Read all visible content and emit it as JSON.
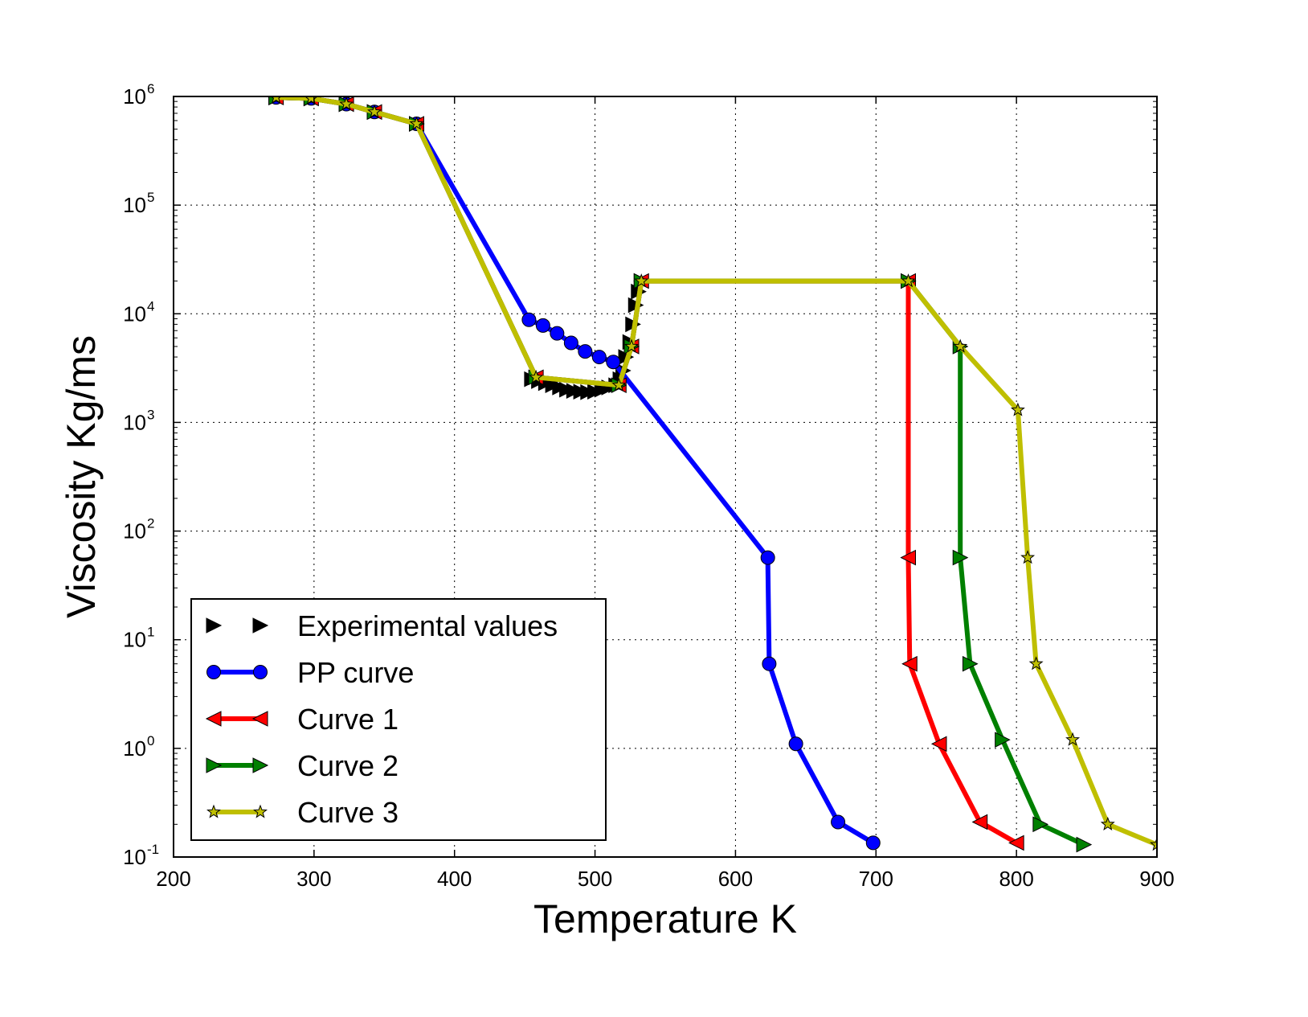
{
  "chart_data": {
    "type": "line",
    "title": "",
    "xlabel": "Temperature K",
    "ylabel": "Viscosity Kg/ms",
    "yscale": "log",
    "xlim": [
      200,
      900
    ],
    "ylim": [
      0.1,
      1000000
    ],
    "grid": true,
    "legend_position": "bottom-left",
    "x_ticks": [
      {
        "value": 200,
        "label": "200"
      },
      {
        "value": 300,
        "label": "300"
      },
      {
        "value": 400,
        "label": "400"
      },
      {
        "value": 500,
        "label": "500"
      },
      {
        "value": 600,
        "label": "600"
      },
      {
        "value": 700,
        "label": "700"
      },
      {
        "value": 800,
        "label": "800"
      },
      {
        "value": 900,
        "label": "900"
      }
    ],
    "y_ticks": [
      {
        "value": 0.1,
        "base": "10",
        "exp": "-1"
      },
      {
        "value": 1,
        "base": "10",
        "exp": "0"
      },
      {
        "value": 10,
        "base": "10",
        "exp": "1"
      },
      {
        "value": 100,
        "base": "10",
        "exp": "2"
      },
      {
        "value": 1000,
        "base": "10",
        "exp": "3"
      },
      {
        "value": 10000,
        "base": "10",
        "exp": "4"
      },
      {
        "value": 100000,
        "base": "10",
        "exp": "5"
      },
      {
        "value": 1000000,
        "base": "10",
        "exp": "6"
      }
    ],
    "series": [
      {
        "name": "Experimental values",
        "color": "#000000",
        "marker": "triangle-right",
        "line": false,
        "points": [
          [
            273,
            980000
          ],
          [
            298,
            960000
          ],
          [
            323,
            850000
          ],
          [
            343,
            720000
          ],
          [
            373,
            560000
          ],
          [
            455,
            2500
          ],
          [
            460,
            2400
          ],
          [
            465,
            2300
          ],
          [
            470,
            2200
          ],
          [
            475,
            2100
          ],
          [
            480,
            2000
          ],
          [
            485,
            1950
          ],
          [
            490,
            1920
          ],
          [
            495,
            1900
          ],
          [
            500,
            1920
          ],
          [
            505,
            2000
          ],
          [
            510,
            2100
          ],
          [
            515,
            2200
          ],
          [
            518,
            2500
          ],
          [
            520,
            3000
          ],
          [
            522,
            4000
          ],
          [
            525,
            5500
          ],
          [
            527,
            8000
          ],
          [
            529,
            12000
          ],
          [
            531,
            16000
          ],
          [
            533,
            20000
          ]
        ]
      },
      {
        "name": "PP curve",
        "color": "#0000ff",
        "marker": "circle",
        "line": true,
        "points": [
          [
            273,
            980000
          ],
          [
            298,
            960000
          ],
          [
            323,
            850000
          ],
          [
            343,
            720000
          ],
          [
            373,
            560000
          ],
          [
            453,
            8800
          ],
          [
            463,
            7800
          ],
          [
            473,
            6600
          ],
          [
            483,
            5400
          ],
          [
            493,
            4500
          ],
          [
            503,
            4000
          ],
          [
            513,
            3600
          ],
          [
            623,
            57
          ],
          [
            624,
            6
          ],
          [
            643,
            1.1
          ],
          [
            673,
            0.21
          ],
          [
            698,
            0.135
          ]
        ]
      },
      {
        "name": "Curve 1",
        "color": "#ff0000",
        "marker": "triangle-left",
        "line": true,
        "points": [
          [
            273,
            980000
          ],
          [
            298,
            960000
          ],
          [
            323,
            850000
          ],
          [
            343,
            720000
          ],
          [
            373,
            560000
          ],
          [
            458,
            2600
          ],
          [
            517,
            2200
          ],
          [
            526,
            5000
          ],
          [
            533,
            20000
          ],
          [
            723,
            20000
          ],
          [
            723,
            57
          ],
          [
            724,
            6
          ],
          [
            745,
            1.1
          ],
          [
            774,
            0.21
          ],
          [
            800,
            0.135
          ]
        ]
      },
      {
        "name": "Curve 2",
        "color": "#008000",
        "marker": "triangle-right",
        "line": true,
        "points": [
          [
            273,
            980000
          ],
          [
            298,
            960000
          ],
          [
            323,
            850000
          ],
          [
            343,
            720000
          ],
          [
            373,
            560000
          ],
          [
            458,
            2600
          ],
          [
            517,
            2200
          ],
          [
            526,
            5000
          ],
          [
            533,
            20000
          ],
          [
            723,
            20000
          ],
          [
            760,
            5000
          ],
          [
            760,
            57
          ],
          [
            767,
            6
          ],
          [
            790,
            1.2
          ],
          [
            817,
            0.2
          ],
          [
            848,
            0.13
          ]
        ]
      },
      {
        "name": "Curve 3",
        "color": "#bfbf00",
        "marker": "star",
        "line": true,
        "points": [
          [
            273,
            980000
          ],
          [
            298,
            960000
          ],
          [
            323,
            850000
          ],
          [
            343,
            720000
          ],
          [
            373,
            560000
          ],
          [
            458,
            2600
          ],
          [
            517,
            2200
          ],
          [
            526,
            5000
          ],
          [
            533,
            20000
          ],
          [
            723,
            20000
          ],
          [
            760,
            5000
          ],
          [
            801,
            1300
          ],
          [
            808,
            57
          ],
          [
            814,
            6
          ],
          [
            840,
            1.2
          ],
          [
            865,
            0.2
          ],
          [
            900,
            0.13
          ]
        ]
      }
    ]
  }
}
